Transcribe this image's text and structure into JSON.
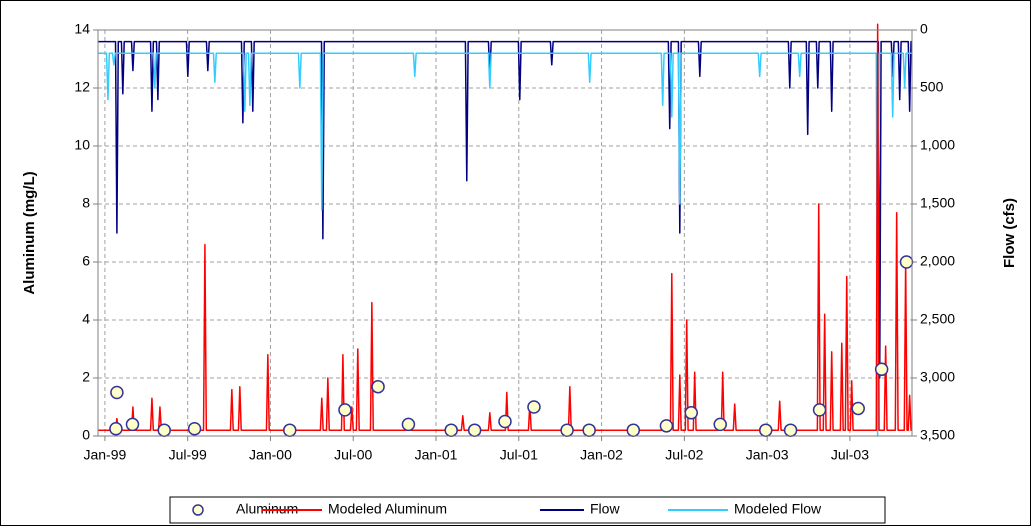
{
  "chart_data": {
    "type": "combo",
    "y_label": "Aluminum (mg/L)",
    "y2_label": "Flow (cfs)",
    "xlim": [
      -0.5,
      58.5
    ],
    "xticks": [
      {
        "value": 0,
        "label": "Jan-99"
      },
      {
        "value": 6,
        "label": "Jul-99"
      },
      {
        "value": 12,
        "label": "Jan-00"
      },
      {
        "value": 18,
        "label": "Jul-00"
      },
      {
        "value": 24,
        "label": "Jan-01"
      },
      {
        "value": 30,
        "label": "Jul-01"
      },
      {
        "value": 36,
        "label": "Jan-02"
      },
      {
        "value": 42,
        "label": "Jul-02"
      },
      {
        "value": 48,
        "label": "Jan-03"
      },
      {
        "value": 54,
        "label": "Jul-03"
      }
    ],
    "ylim": [
      0,
      14
    ],
    "yticks": [
      0,
      2,
      4,
      6,
      8,
      10,
      12,
      14
    ],
    "y2lim": [
      3500,
      0
    ],
    "y2ticks": [
      0,
      500,
      {
        "value": 1000,
        "label": "1,000"
      },
      {
        "value": 1500,
        "label": "1,500"
      },
      {
        "value": 2000,
        "label": "2,000"
      },
      {
        "value": 2500,
        "label": "2,500"
      },
      {
        "value": 3000,
        "label": "3,000"
      },
      {
        "value": 3500,
        "label": "3,500"
      }
    ],
    "grid": true,
    "legend": "bottom",
    "series": [
      {
        "name": "Aluminum",
        "type": "scatter",
        "color": "#333399",
        "fill": "#ffffcc",
        "x": [
          0.8,
          0.87,
          2.0,
          4.3,
          6.5,
          13.4,
          17.4,
          19.8,
          22.0,
          25.1,
          26.8,
          29.0,
          31.1,
          33.5,
          35.1,
          38.3,
          40.7,
          42.5,
          44.6,
          47.9,
          49.7,
          51.8,
          54.6,
          56.3,
          58.1
        ],
        "values": [
          0.25,
          1.5,
          0.4,
          0.2,
          0.25,
          0.2,
          0.9,
          1.7,
          0.4,
          0.2,
          0.2,
          0.5,
          1.0,
          0.2,
          0.2,
          0.2,
          0.35,
          0.8,
          0.4,
          0.2,
          0.2,
          0.9,
          0.95,
          2.3,
          6.0
        ]
      },
      {
        "name": "Modeled Aluminum",
        "type": "line",
        "color": "#ff0000",
        "x": [
          -0.5,
          0.77,
          0.87,
          0.97,
          1.93,
          2.03,
          2.13,
          3.31,
          3.41,
          3.51,
          3.89,
          3.99,
          4.09,
          7.15,
          7.25,
          7.35,
          9.1,
          9.2,
          9.3,
          9.68,
          9.78,
          9.88,
          11.71,
          11.81,
          11.91,
          15.62,
          15.72,
          15.82,
          16.06,
          16.16,
          16.26,
          17.15,
          17.25,
          17.35,
          17.8,
          17.9,
          18.0,
          18.23,
          18.33,
          18.43,
          19.25,
          19.35,
          19.45,
          25.84,
          25.94,
          26.04,
          27.8,
          27.9,
          28.0,
          29.03,
          29.13,
          29.23,
          30.7,
          30.8,
          30.9,
          33.6,
          33.7,
          33.8,
          40.99,
          41.09,
          41.19,
          41.57,
          41.67,
          41.77,
          42.07,
          42.17,
          42.27,
          42.65,
          42.75,
          42.85,
          44.68,
          44.78,
          44.88,
          45.55,
          45.65,
          45.75,
          48.81,
          48.91,
          49.01,
          51.64,
          51.74,
          51.84,
          52.07,
          52.17,
          52.27,
          52.58,
          52.68,
          52.78,
          53.31,
          53.41,
          53.51,
          53.67,
          53.77,
          53.87,
          54.03,
          54.13,
          54.23,
          55.91,
          56.01,
          56.11,
          56.49,
          56.59,
          56.69,
          57.29,
          57.39,
          57.49,
          57.94,
          58.04,
          58.14,
          58.23,
          58.33,
          58.43,
          58.5
        ],
        "values": [
          0.2,
          0.2,
          0.6,
          0.2,
          0.2,
          1.0,
          0.2,
          0.2,
          1.3,
          0.2,
          0.2,
          1.0,
          0.2,
          0.2,
          6.6,
          0.2,
          0.2,
          1.6,
          0.2,
          0.2,
          1.7,
          0.2,
          0.2,
          2.8,
          0.2,
          0.2,
          1.3,
          0.2,
          0.2,
          2.0,
          0.2,
          0.2,
          2.8,
          0.2,
          0.2,
          1.0,
          0.2,
          0.2,
          3.0,
          0.2,
          0.2,
          4.6,
          0.2,
          0.2,
          0.7,
          0.2,
          0.2,
          0.8,
          0.2,
          0.2,
          1.5,
          0.2,
          0.2,
          1.1,
          0.2,
          0.2,
          1.7,
          0.2,
          0.2,
          5.6,
          0.2,
          0.2,
          2.1,
          0.2,
          0.2,
          4.0,
          0.2,
          0.2,
          2.2,
          0.2,
          0.2,
          2.2,
          0.2,
          0.2,
          1.1,
          0.2,
          0.2,
          1.2,
          0.2,
          0.2,
          8.0,
          0.2,
          0.2,
          4.2,
          0.2,
          0.2,
          2.9,
          0.2,
          0.2,
          3.2,
          0.2,
          0.2,
          5.5,
          0.2,
          0.2,
          1.9,
          0.2,
          0.2,
          14.2,
          0.2,
          0.2,
          3.1,
          0.2,
          0.2,
          7.7,
          0.2,
          0.2,
          6.0,
          0.2,
          0.2,
          1.4,
          0.2,
          0.2
        ]
      },
      {
        "name": "Flow",
        "type": "line",
        "axis": "y2",
        "color": "#000080",
        "x": [
          -0.5,
          0.77,
          0.87,
          0.97,
          1.2,
          1.3,
          1.4,
          1.93,
          2.03,
          2.13,
          3.31,
          3.41,
          3.51,
          3.74,
          3.84,
          3.94,
          5.91,
          6.01,
          6.11,
          7.36,
          7.46,
          7.56,
          9.9,
          10.0,
          10.1,
          10.62,
          10.72,
          10.82,
          15.7,
          15.8,
          15.9,
          26.13,
          26.23,
          26.33,
          27.8,
          27.9,
          28.0,
          29.97,
          30.07,
          30.17,
          32.29,
          32.39,
          32.49,
          40.84,
          40.94,
          41.04,
          41.57,
          41.67,
          41.77,
          43.02,
          43.12,
          43.22,
          49.54,
          49.64,
          49.74,
          50.84,
          50.94,
          51.04,
          51.57,
          51.67,
          51.77,
          52.58,
          52.68,
          52.78,
          56.06,
          56.16,
          56.26,
          57.0,
          57.1,
          57.2,
          57.51,
          57.61,
          57.71,
          58.23,
          58.33,
          58.43,
          58.5
        ],
        "values": [
          100,
          100,
          1750,
          100,
          100,
          550,
          100,
          100,
          350,
          100,
          100,
          700,
          100,
          100,
          600,
          100,
          100,
          400,
          100,
          100,
          350,
          100,
          100,
          800,
          100,
          100,
          700,
          100,
          100,
          1800,
          100,
          100,
          1300,
          100,
          100,
          400,
          100,
          100,
          600,
          100,
          100,
          300,
          100,
          100,
          850,
          100,
          100,
          1750,
          100,
          100,
          400,
          100,
          100,
          500,
          100,
          100,
          900,
          100,
          100,
          500,
          100,
          100,
          700,
          100,
          100,
          3000,
          100,
          100,
          400,
          100,
          100,
          600,
          100,
          100,
          700,
          100,
          100
        ]
      },
      {
        "name": "Modeled Flow",
        "type": "line",
        "axis": "y2",
        "color": "#33ccff",
        "x": [
          -0.5,
          0.12,
          0.22,
          0.32,
          0.55,
          0.65,
          0.75,
          3.52,
          3.62,
          3.72,
          7.87,
          7.97,
          8.07,
          10.04,
          10.14,
          10.24,
          10.41,
          10.51,
          10.61,
          14.03,
          14.13,
          14.23,
          15.62,
          15.72,
          15.82,
          22.36,
          22.46,
          22.56,
          27.8,
          27.9,
          28.0,
          35.04,
          35.14,
          35.24,
          40.33,
          40.43,
          40.53,
          40.99,
          41.09,
          41.19,
          41.57,
          41.67,
          41.77,
          47.36,
          47.46,
          47.56,
          50.26,
          50.36,
          50.46,
          55.91,
          56.01,
          56.11,
          57.0,
          57.1,
          57.2,
          57.87,
          57.97,
          58.07,
          58.5
        ],
        "values": [
          200,
          200,
          600,
          200,
          200,
          300,
          200,
          200,
          500,
          200,
          200,
          450,
          200,
          200,
          700,
          200,
          200,
          650,
          200,
          200,
          500,
          200,
          200,
          1550,
          200,
          200,
          400,
          200,
          200,
          500,
          200,
          200,
          450,
          200,
          200,
          650,
          200,
          200,
          750,
          200,
          200,
          1500,
          200,
          200,
          400,
          200,
          200,
          400,
          200,
          200,
          3500,
          200,
          200,
          750,
          200,
          200,
          500,
          200,
          200
        ]
      }
    ]
  }
}
